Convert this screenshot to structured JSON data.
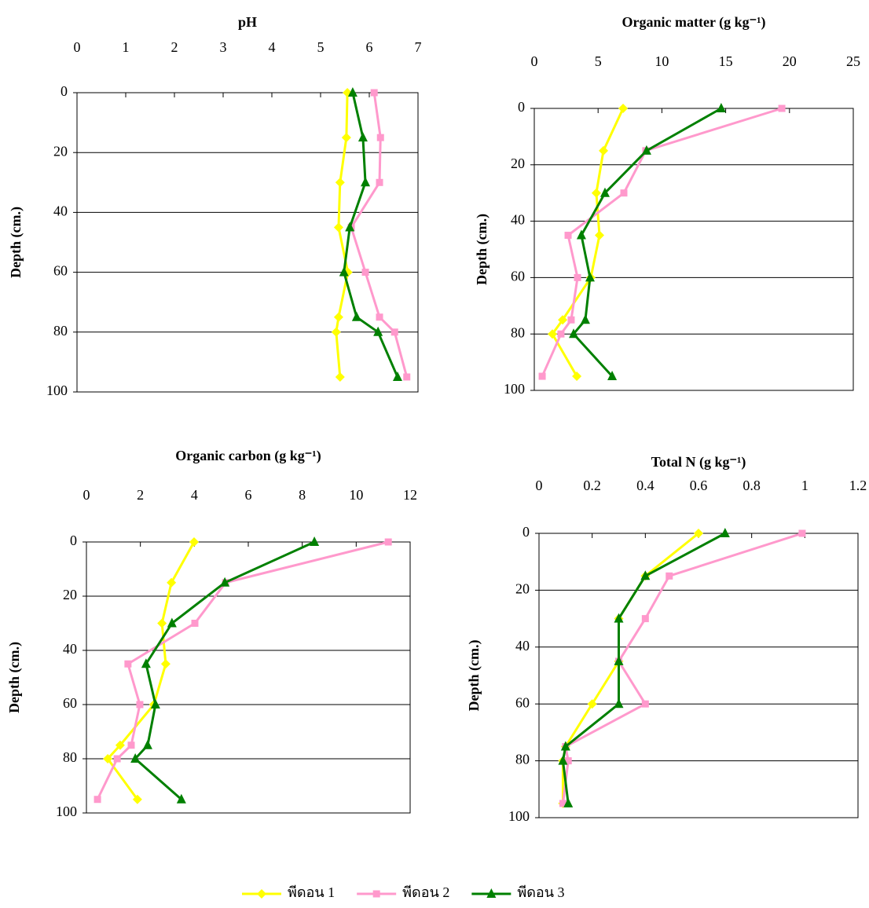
{
  "chart_data": [
    {
      "type": "line",
      "title": "pH",
      "y_label": "Depth (cm.)",
      "y": [
        0,
        15,
        30,
        45,
        60,
        75,
        80,
        95
      ],
      "xlim": [
        0,
        7
      ],
      "xticks": [
        0,
        1,
        2,
        3,
        4,
        5,
        6,
        7
      ],
      "ylim": [
        0,
        100
      ],
      "yticks": [
        0,
        20,
        40,
        60,
        80,
        100
      ],
      "grid": true,
      "series": [
        {
          "name": "พีดอน 1",
          "color": "#ffff00",
          "marker": "diamond",
          "values": [
            5.55,
            5.53,
            5.4,
            5.37,
            5.56,
            5.37,
            5.32,
            5.4
          ]
        },
        {
          "name": "พีดอน 2",
          "color": "#ff99cc",
          "marker": "square",
          "values": [
            6.1,
            6.23,
            6.21,
            5.63,
            5.92,
            6.21,
            6.52,
            6.77
          ]
        },
        {
          "name": "พีดอน 3",
          "color": "#008000",
          "marker": "triangle",
          "values": [
            5.66,
            5.87,
            5.92,
            5.6,
            5.48,
            5.74,
            6.18,
            6.58
          ]
        }
      ]
    },
    {
      "type": "line",
      "title": "Organic matter (g kg⁻¹)",
      "y_label": "Depth (cm.)",
      "y": [
        0,
        15,
        30,
        45,
        60,
        75,
        80,
        95
      ],
      "xlim": [
        0,
        25
      ],
      "xticks": [
        0,
        5,
        10,
        15,
        20,
        25
      ],
      "ylim": [
        0,
        100
      ],
      "yticks": [
        0,
        20,
        40,
        60,
        80,
        100
      ],
      "grid": true,
      "series": [
        {
          "color": "#ffff00",
          "marker": "diamond",
          "values": [
            6.96,
            5.42,
            4.86,
            5.11,
            4.43,
            2.22,
            1.42,
            3.33
          ]
        },
        {
          "color": "#ff99cc",
          "marker": "square",
          "values": [
            19.4,
            8.74,
            7.02,
            2.65,
            3.39,
            2.89,
            2.09,
            0.62
          ]
        },
        {
          "color": "#008000",
          "marker": "triangle",
          "values": [
            14.65,
            8.8,
            5.54,
            3.69,
            4.37,
            4.0,
            3.08,
            6.1
          ]
        }
      ]
    },
    {
      "type": "line",
      "title": "Organic carbon (g kg⁻¹)",
      "y_label": "Depth (cm.)",
      "y": [
        0,
        15,
        30,
        45,
        60,
        75,
        80,
        95
      ],
      "xlim": [
        0,
        12
      ],
      "xticks": [
        0,
        2,
        4,
        6,
        8,
        10,
        12
      ],
      "ylim": [
        0,
        100
      ],
      "yticks": [
        0,
        20,
        40,
        60,
        80,
        100
      ],
      "grid": true,
      "series": [
        {
          "color": "#ffff00",
          "marker": "diamond",
          "values": [
            3.99,
            3.15,
            2.8,
            2.94,
            2.5,
            1.25,
            0.79,
            1.89
          ]
        },
        {
          "color": "#ff99cc",
          "marker": "square",
          "values": [
            11.19,
            5.16,
            4.02,
            1.54,
            1.98,
            1.66,
            1.14,
            0.41
          ]
        },
        {
          "color": "#008000",
          "marker": "triangle",
          "values": [
            8.45,
            5.13,
            3.17,
            2.21,
            2.56,
            2.27,
            1.81,
            3.52
          ]
        }
      ]
    },
    {
      "type": "line",
      "title": "Total N (g kg⁻¹)",
      "y_label": "Depth (cm.)",
      "y": [
        0,
        15,
        30,
        45,
        60,
        75,
        80,
        95
      ],
      "xlim": [
        0,
        1.2
      ],
      "xticks": [
        0,
        0.2,
        0.4,
        0.6,
        0.8,
        1,
        1.2
      ],
      "ylim": [
        0,
        100
      ],
      "yticks": [
        0,
        20,
        40,
        60,
        80,
        100
      ],
      "grid": true,
      "series": [
        {
          "color": "#ffff00",
          "marker": "diamond",
          "values": [
            0.6,
            0.4,
            0.3,
            0.3,
            0.2,
            0.1,
            0.09,
            0.09
          ]
        },
        {
          "color": "#ff99cc",
          "marker": "square",
          "values": [
            0.99,
            0.49,
            0.4,
            0.3,
            0.4,
            0.1,
            0.11,
            0.09
          ]
        },
        {
          "color": "#008000",
          "marker": "triangle",
          "values": [
            0.7,
            0.4,
            0.3,
            0.3,
            0.3,
            0.1,
            0.09,
            0.11
          ]
        }
      ]
    }
  ]
}
